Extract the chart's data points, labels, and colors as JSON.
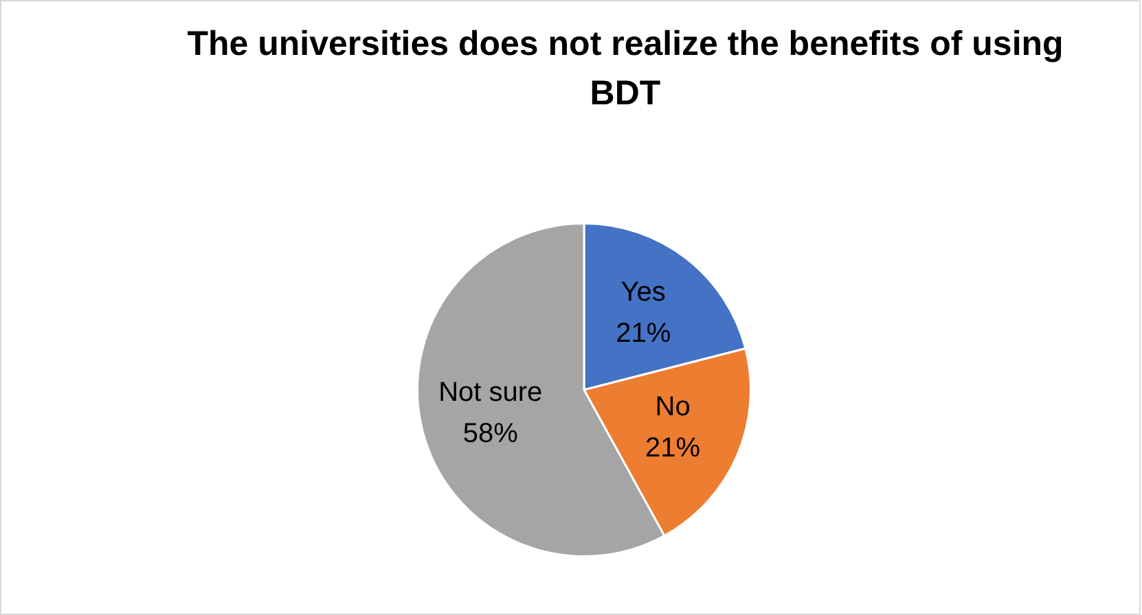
{
  "chart_data": {
    "type": "pie",
    "title": "The universities does not realize the benefits of using BDT",
    "categories": [
      "Yes",
      "No",
      "Not sure"
    ],
    "values": [
      21,
      21,
      58
    ],
    "colors": [
      "#4472c4",
      "#ed7d31",
      "#a5a5a5"
    ],
    "value_labels": [
      "21%",
      "21%",
      "58%"
    ],
    "legend": false
  }
}
